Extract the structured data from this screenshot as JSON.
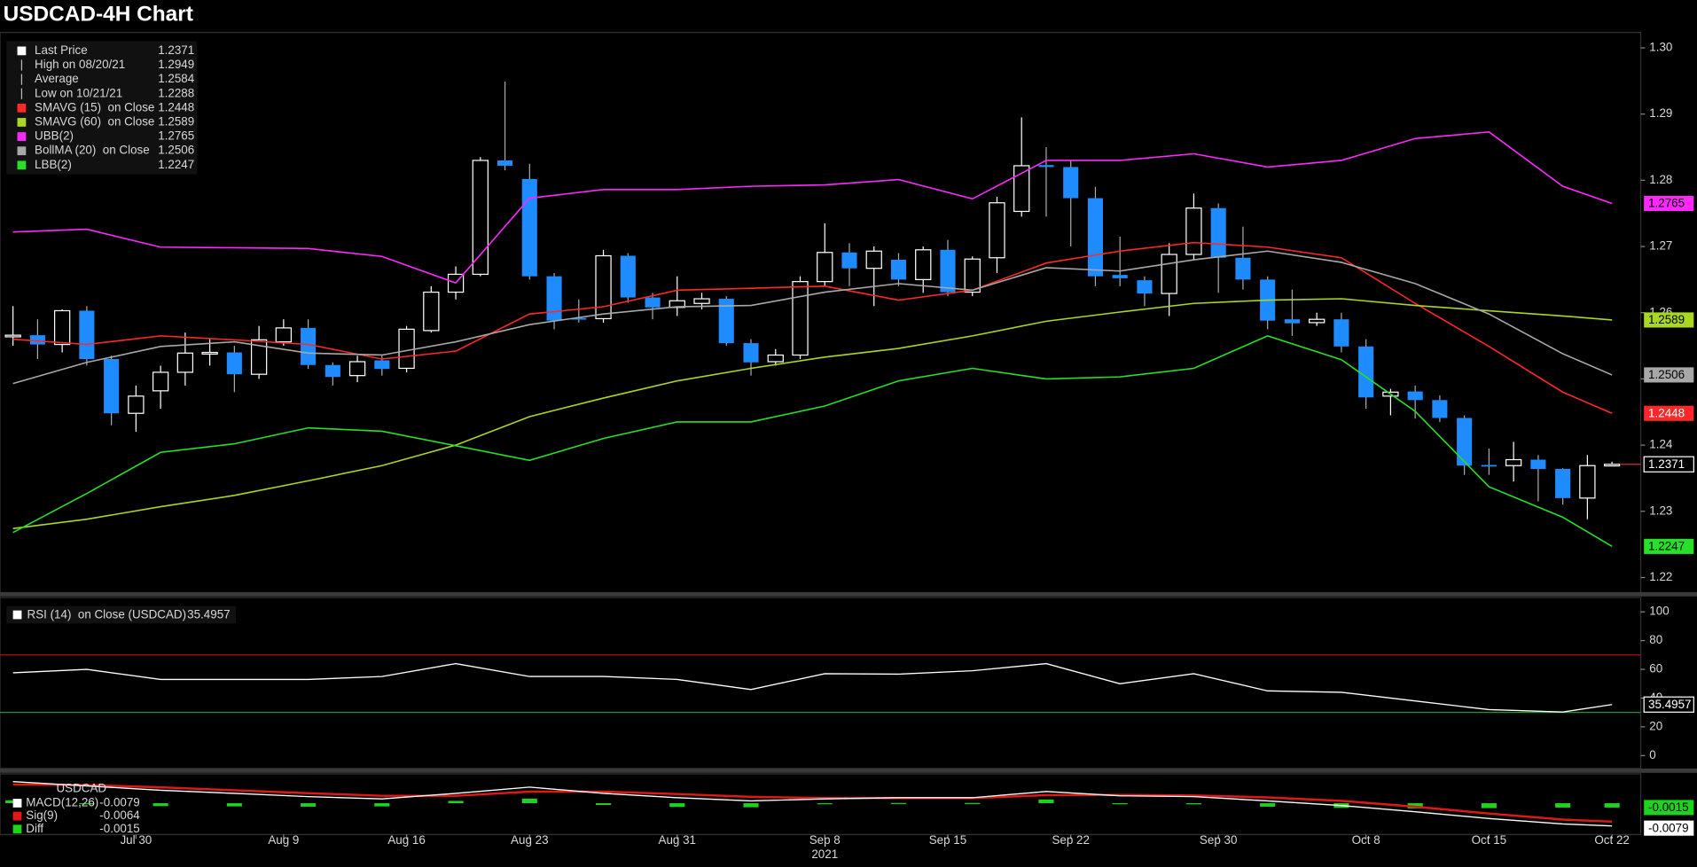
{
  "chart_data": [
    {
      "type": "candlestick",
      "title": "USDCAD-4H Chart",
      "stats": [
        {
          "label": "Last Price",
          "value": 1.2371
        },
        {
          "label": "High on 08/20/21",
          "value": 1.2949
        },
        {
          "label": "Average",
          "value": 1.2584
        },
        {
          "label": "Low on 10/21/21",
          "value": 1.2288
        }
      ],
      "open": [
        1.2565,
        1.2566,
        1.2552,
        1.2603,
        1.253,
        1.2448,
        1.2482,
        1.251,
        1.2538,
        1.254,
        1.2507,
        1.2556,
        1.2577,
        1.2521,
        1.2505,
        1.2528,
        1.2516,
        1.2573,
        1.2631,
        1.2658,
        1.283,
        1.2802,
        1.2655,
        1.2592,
        1.2591,
        1.2686,
        1.2623,
        1.2608,
        1.2614,
        1.2621,
        1.2554,
        1.2526,
        1.2536,
        1.2647,
        1.2691,
        1.2667,
        1.268,
        1.265,
        1.2695,
        1.2631,
        1.2683,
        1.2753,
        1.2823,
        1.282,
        1.2773,
        1.2657,
        1.2649,
        1.2629,
        1.2688,
        1.2758,
        1.2683,
        1.265,
        1.259,
        1.2585,
        1.259,
        1.2549,
        1.2474,
        1.2481,
        1.2468,
        1.2441,
        1.237,
        1.2369,
        1.2378,
        1.2364,
        1.232,
        1.237
      ],
      "high": [
        1.261,
        1.259,
        1.2605,
        1.261,
        1.2535,
        1.249,
        1.252,
        1.257,
        1.256,
        1.255,
        1.258,
        1.259,
        1.259,
        1.2525,
        1.2535,
        1.2535,
        1.258,
        1.264,
        1.267,
        1.2835,
        1.2949,
        1.2825,
        1.266,
        1.262,
        1.2695,
        1.269,
        1.263,
        1.2655,
        1.263,
        1.2625,
        1.256,
        1.2545,
        1.2655,
        1.2735,
        1.2705,
        1.27,
        1.269,
        1.27,
        1.271,
        1.2685,
        1.2775,
        1.2895,
        1.285,
        1.283,
        1.279,
        1.2715,
        1.2655,
        1.2705,
        1.278,
        1.2765,
        1.273,
        1.2655,
        1.2635,
        1.26,
        1.26,
        1.256,
        1.2485,
        1.249,
        1.2475,
        1.2445,
        1.2395,
        1.2405,
        1.2385,
        1.2365,
        1.2385,
        1.2375
      ],
      "low": [
        1.255,
        1.253,
        1.254,
        1.252,
        1.243,
        1.242,
        1.2455,
        1.249,
        1.252,
        1.248,
        1.25,
        1.255,
        1.2515,
        1.249,
        1.2495,
        1.2505,
        1.251,
        1.257,
        1.262,
        1.2655,
        1.2815,
        1.265,
        1.2575,
        1.2585,
        1.2585,
        1.2615,
        1.259,
        1.2595,
        1.2605,
        1.255,
        1.2505,
        1.252,
        1.253,
        1.264,
        1.264,
        1.261,
        1.264,
        1.263,
        1.2625,
        1.2625,
        1.266,
        1.2745,
        1.2745,
        1.27,
        1.264,
        1.264,
        1.261,
        1.2595,
        1.268,
        1.263,
        1.2635,
        1.2575,
        1.2565,
        1.258,
        1.254,
        1.2455,
        1.2445,
        1.244,
        1.2435,
        1.2355,
        1.2355,
        1.2345,
        1.2315,
        1.231,
        1.2288,
        1.2368
      ],
      "close": [
        1.2566,
        1.2552,
        1.2603,
        1.253,
        1.2448,
        1.2474,
        1.251,
        1.2539,
        1.254,
        1.2507,
        1.2559,
        1.2577,
        1.2521,
        1.2503,
        1.2526,
        1.2515,
        1.2575,
        1.2631,
        1.2658,
        1.283,
        1.2822,
        1.2655,
        1.2588,
        1.259,
        1.2686,
        1.2623,
        1.2608,
        1.2618,
        1.2621,
        1.2554,
        1.2525,
        1.2536,
        1.2647,
        1.2691,
        1.2667,
        1.2693,
        1.265,
        1.2695,
        1.2631,
        1.2681,
        1.2766,
        1.2822,
        1.282,
        1.2773,
        1.2655,
        1.2652,
        1.2629,
        1.2688,
        1.2758,
        1.2683,
        1.265,
        1.2588,
        1.2584,
        1.259,
        1.2549,
        1.2472,
        1.248,
        1.2468,
        1.2441,
        1.2369,
        1.2369,
        1.2378,
        1.2364,
        1.232,
        1.2369,
        1.2371
      ],
      "up_color": "#000000",
      "down_color": "#1e8cff",
      "line_x": [
        0,
        3,
        6,
        9,
        12,
        15,
        18,
        21,
        24,
        27,
        30,
        33,
        36,
        39,
        42,
        45,
        48,
        51,
        54,
        57,
        60,
        63,
        65
      ],
      "series": [
        {
          "name": "SMAVG (15)  on Close",
          "color": "#ff2828",
          "values": [
            1.256,
            1.2552,
            1.2565,
            1.2559,
            1.2552,
            1.253,
            1.2542,
            1.2598,
            1.2609,
            1.2634,
            1.2637,
            1.264,
            1.2619,
            1.2634,
            1.2675,
            1.2693,
            1.2706,
            1.2699,
            1.2683,
            1.2614,
            1.2549,
            1.248,
            1.2448
          ]
        },
        {
          "name": "SMAVG (60)  on Close",
          "color": "#a8d820",
          "values": [
            1.2274,
            1.2288,
            1.2307,
            1.2324,
            1.2346,
            1.2369,
            1.24,
            1.2443,
            1.2471,
            1.2497,
            1.2516,
            1.2533,
            1.2546,
            1.2565,
            1.2587,
            1.2601,
            1.2614,
            1.2619,
            1.2621,
            1.2611,
            1.2603,
            1.2595,
            1.2589
          ]
        },
        {
          "name": "UBB(2)",
          "color": "#ff28ff",
          "values": [
            1.2722,
            1.2726,
            1.2699,
            1.2698,
            1.2697,
            1.2685,
            1.2645,
            1.2773,
            1.2786,
            1.2786,
            1.2791,
            1.2793,
            1.2801,
            1.2772,
            1.283,
            1.283,
            1.284,
            1.282,
            1.283,
            1.2863,
            1.2873,
            1.2791,
            1.2765
          ]
        },
        {
          "name": "BollMA (20)  on Close",
          "color": "#a8a8a8",
          "values": [
            1.2493,
            1.2525,
            1.2549,
            1.2556,
            1.2539,
            1.2536,
            1.2556,
            1.2582,
            1.2598,
            1.2609,
            1.2611,
            1.2631,
            1.2644,
            1.2634,
            1.2668,
            1.2663,
            1.268,
            1.2693,
            1.2676,
            1.2644,
            1.2598,
            1.2538,
            1.2506
          ]
        },
        {
          "name": "LBB(2)",
          "color": "#28e028",
          "values": [
            1.2268,
            1.2327,
            1.2389,
            1.2402,
            1.2426,
            1.2421,
            1.2399,
            1.2377,
            1.241,
            1.2435,
            1.2435,
            1.2459,
            1.2497,
            1.2516,
            1.25,
            1.2503,
            1.2516,
            1.2565,
            1.2529,
            1.2451,
            1.2337,
            1.2291,
            1.2247
          ]
        }
      ],
      "ylim": [
        1.2178,
        1.302
      ],
      "yticks": [
        {
          "value": 1.3,
          "label": "1.30"
        },
        1.29,
        1.28,
        1.27,
        1.26,
        1.25,
        1.24,
        1.23,
        1.22
      ],
      "xticks": [
        {
          "value": 5,
          "label": "Jul 30"
        },
        {
          "value": 11,
          "label": "Aug 9"
        },
        {
          "value": 16,
          "label": "Aug 16"
        },
        {
          "value": 21,
          "label": "Aug 23"
        },
        {
          "value": 27,
          "label": "Aug 31"
        },
        {
          "value": 33,
          "label": "Sep 8"
        },
        {
          "value": 38,
          "label": "Sep 15"
        },
        {
          "value": 43,
          "label": "Sep 22"
        },
        {
          "value": 49,
          "label": "Sep 30"
        },
        {
          "value": 55,
          "label": "Oct 8"
        },
        {
          "value": 60,
          "label": "Oct 15"
        },
        {
          "value": 65,
          "label": "Oct 22"
        }
      ],
      "x_sublabel": "2021"
    },
    {
      "type": "line",
      "name": "RSI (14)  on Close (USDCAD)",
      "color": "#ffffff",
      "x": [
        0,
        3,
        6,
        9,
        12,
        15,
        18,
        21,
        24,
        27,
        30,
        33,
        36,
        39,
        42,
        45,
        48,
        51,
        54,
        57,
        60,
        63,
        65
      ],
      "values": [
        57.6,
        60,
        53,
        53,
        53,
        55,
        64,
        55,
        55,
        53,
        46,
        57,
        56.7,
        59,
        64,
        50,
        57,
        45,
        44,
        38,
        32,
        30.3,
        35.4957
      ],
      "ylim": [
        -9,
        110
      ],
      "yticks": [
        100,
        80,
        60,
        40,
        20,
        0
      ],
      "levels": [
        {
          "value": 70,
          "color": "#c81414"
        },
        {
          "value": 30,
          "color": "#1e9a1e"
        }
      ]
    },
    {
      "type": "macd",
      "label": "USDCAD",
      "x": [
        0,
        3,
        6,
        9,
        12,
        15,
        18,
        21,
        24,
        27,
        30,
        33,
        36,
        39,
        42,
        45,
        48,
        51,
        54,
        57,
        60,
        63,
        65
      ],
      "series": [
        {
          "name": "MACD(12,26)",
          "color": "#ffffff",
          "values": [
            0.0075,
            0.006,
            0.0045,
            0.0034,
            0.0023,
            0.0015,
            0.0034,
            0.0056,
            0.0034,
            0.0019,
            0.0008,
            0.0015,
            0.0019,
            0.0019,
            0.0041,
            0.0026,
            0.0023,
            0.0008,
            -0.0008,
            -0.003,
            -0.0053,
            -0.0072,
            -0.0079
          ]
        },
        {
          "name": "Sig(9)",
          "color": "#e01818",
          "values": [
            0.0065,
            0.0063,
            0.0055,
            0.0045,
            0.0035,
            0.0026,
            0.0026,
            0.004,
            0.004,
            0.0032,
            0.0022,
            0.0018,
            0.0018,
            0.0018,
            0.0028,
            0.0029,
            0.0027,
            0.002,
            0.0008,
            -0.0012,
            -0.0036,
            -0.0057,
            -0.0064
          ]
        },
        {
          "name": "Diff",
          "color": "#1ed21e",
          "values": [
            0.001,
            -0.0003,
            -0.001,
            -0.0011,
            -0.0012,
            -0.0011,
            0.0008,
            0.0016,
            -0.0006,
            -0.0013,
            -0.0014,
            -0.0003,
            0.0001,
            0.0001,
            0.0013,
            -0.0003,
            -0.0004,
            -0.0012,
            -0.0016,
            -0.0018,
            -0.0017,
            -0.0015,
            -0.0015
          ]
        }
      ],
      "ylim": [
        -0.0105,
        0.0098
      ]
    }
  ]
}
